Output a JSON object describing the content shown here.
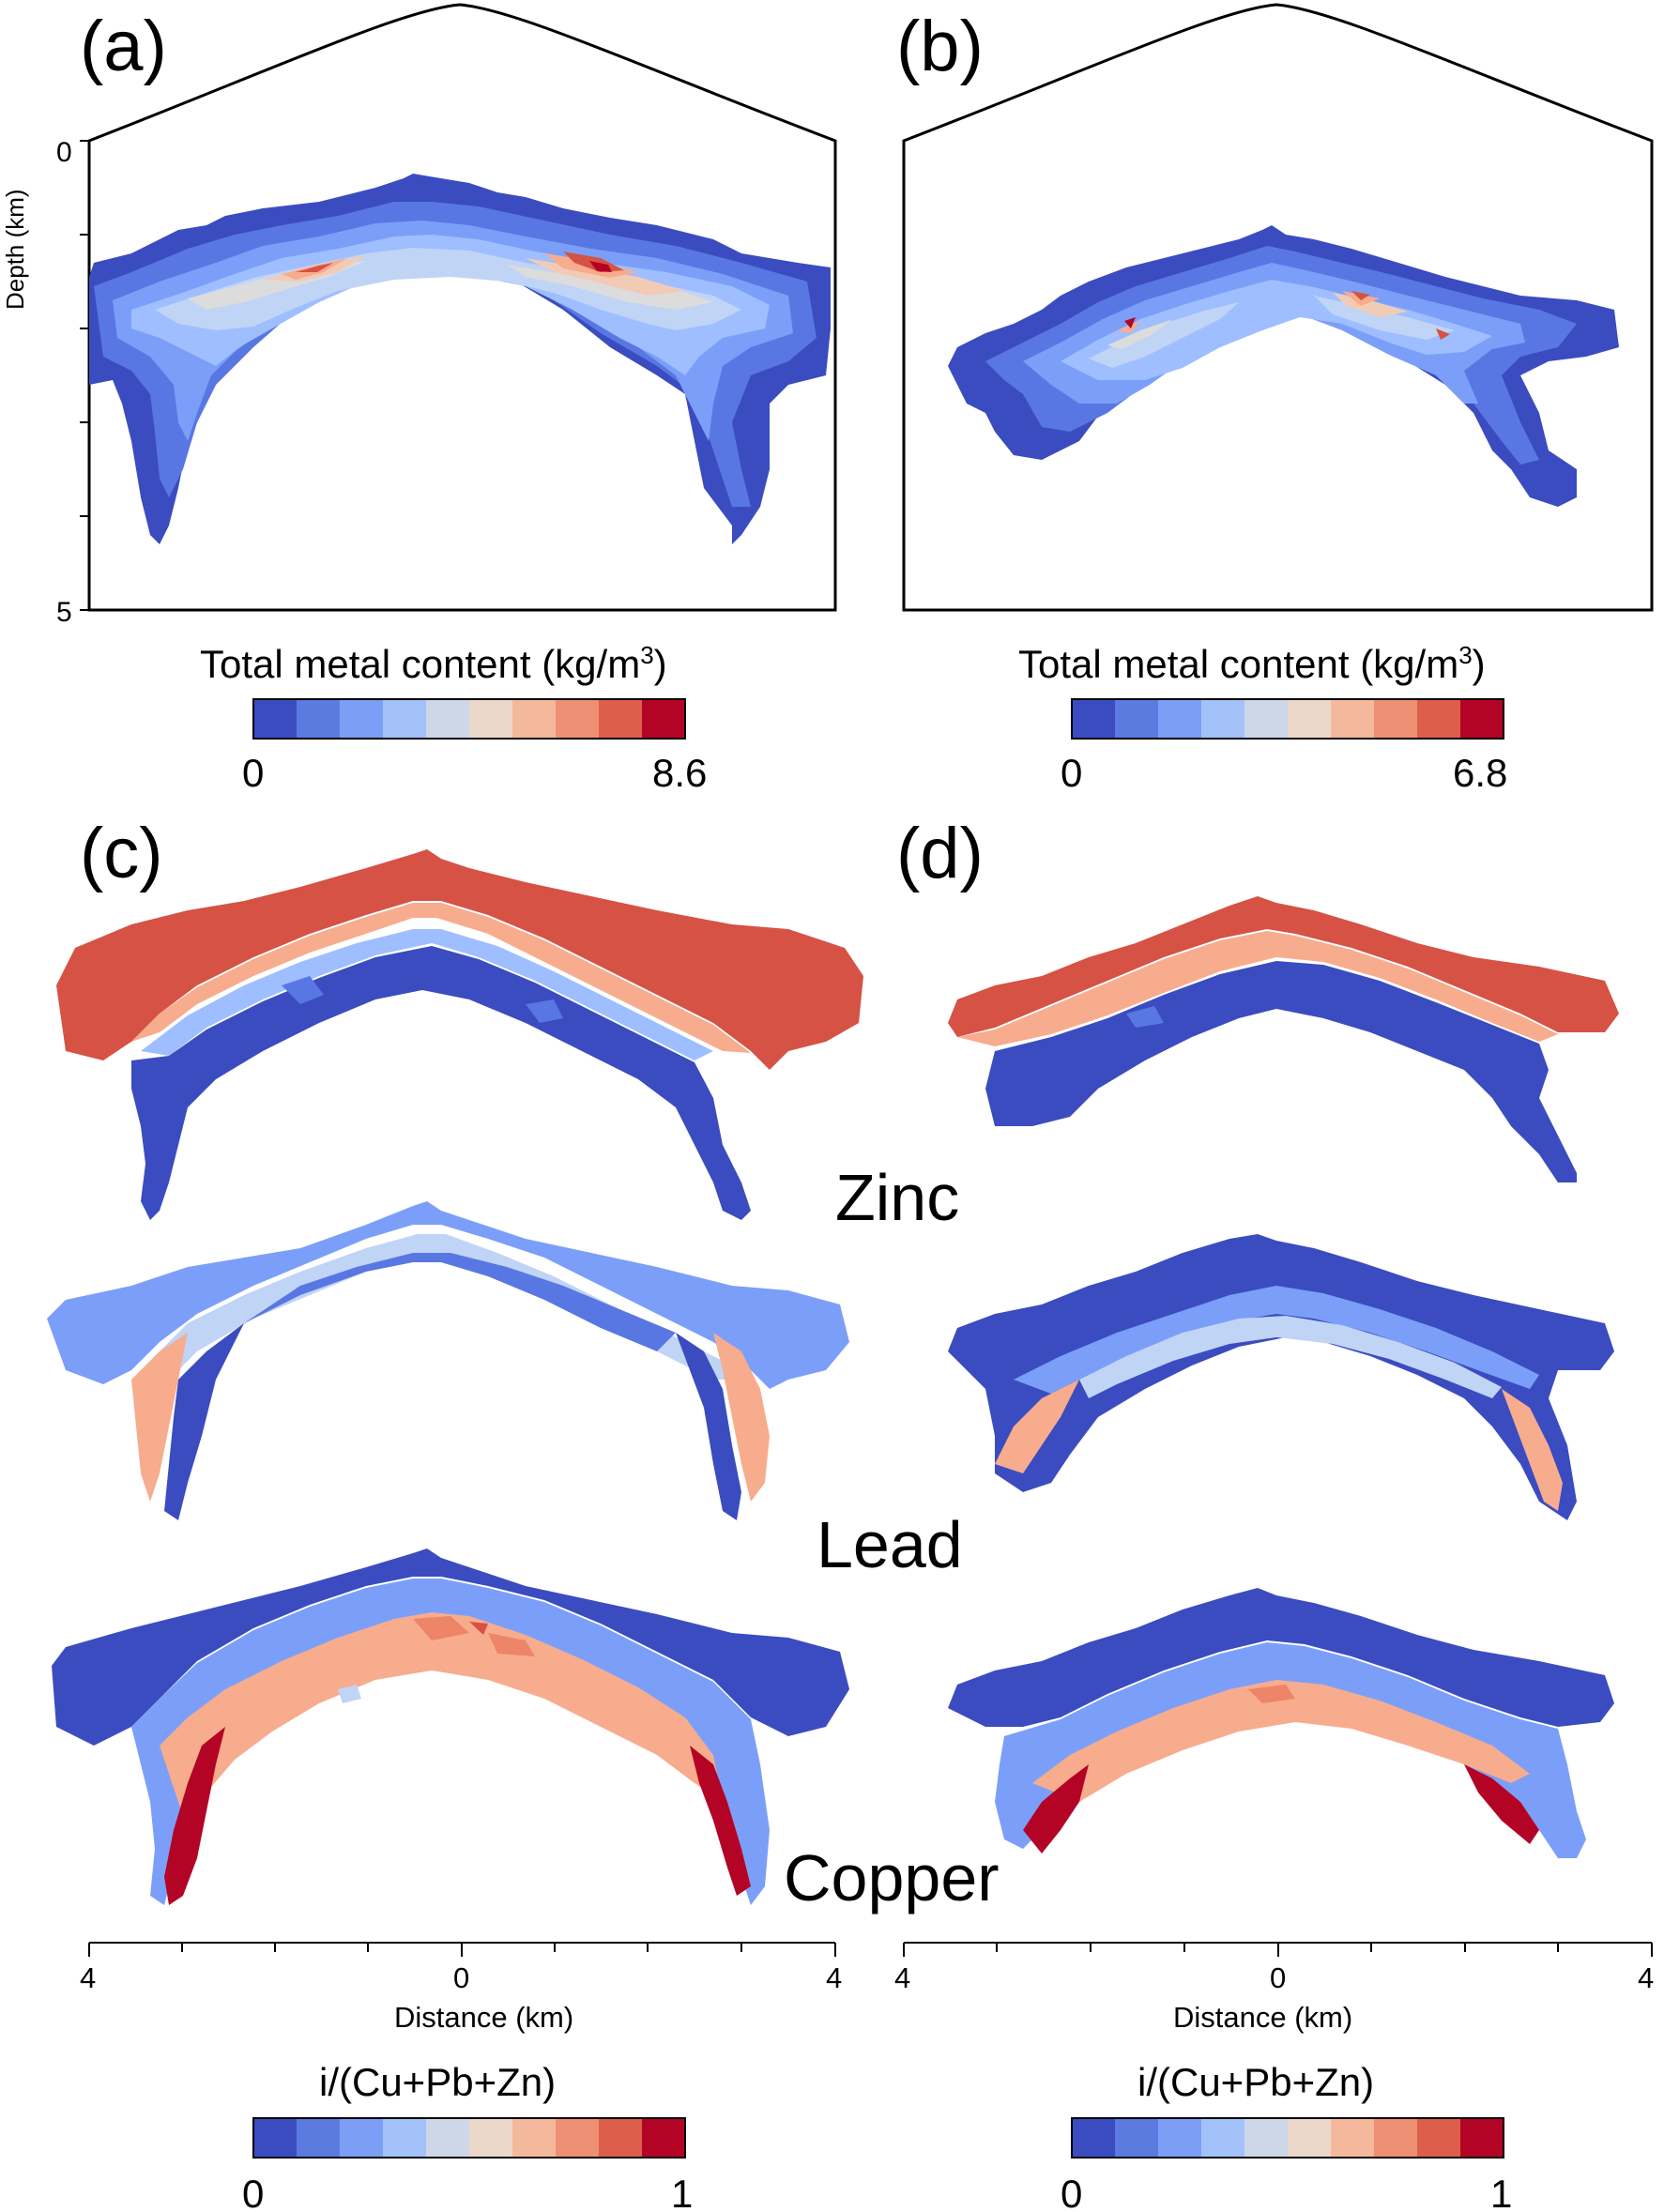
{
  "panels": [
    {
      "letter": "(a)",
      "scale_title": "Total metal content (kg/m",
      "scale_unit_sup": "3",
      "scale_title_end": ")",
      "scale_min": "0",
      "scale_max": "8.6"
    },
    {
      "letter": "(b)",
      "scale_title": "Total metal content (kg/m",
      "scale_unit_sup": "3",
      "scale_title_end": ")",
      "scale_min": "0",
      "scale_max": "6.8"
    },
    {
      "letter": "(c)",
      "scale_title": "i/(Cu+Pb+Zn)",
      "scale_min": "0",
      "scale_max": "1",
      "x_label": "Distance (km)",
      "x_ticks": [
        "4",
        "0",
        "4"
      ]
    },
    {
      "letter": "(d)",
      "scale_title": "i/(Cu+Pb+Zn)",
      "scale_min": "0",
      "scale_max": "1",
      "x_label": "Distance (km)",
      "x_ticks": [
        "4",
        "0",
        "4"
      ]
    }
  ],
  "depth_axis": {
    "label": "Depth (km)",
    "ticks": [
      "0",
      "5"
    ],
    "range_km": [
      0,
      5
    ]
  },
  "metals": [
    "Zinc",
    "Lead",
    "Copper"
  ],
  "colormap": [
    "#3b4cc0",
    "#5977e3",
    "#7b9ff9",
    "#9ebeff",
    "#c0d4f5",
    "#dddcdc",
    "#f2cbb7",
    "#f7ac8e",
    "#ee8468",
    "#d65244",
    "#b40426"
  ],
  "scale_colors": [
    "#3b4cc0",
    "#5b7be1",
    "#7d9ef5",
    "#a3c2fa",
    "#cdd7e8",
    "#ecd7cb",
    "#f4b89c",
    "#ee9074",
    "#dd5f4b",
    "#b40426"
  ],
  "chart_data": [
    {
      "type": "heatmap",
      "panel": "(a)",
      "colorbar_label": "Total metal content (kg/m3)",
      "value_range": [
        0,
        8.6
      ],
      "ylabel": "Depth (km)",
      "ylim": [
        0,
        5
      ]
    },
    {
      "type": "heatmap",
      "panel": "(b)",
      "colorbar_label": "Total metal content (kg/m3)",
      "value_range": [
        0,
        6.8
      ]
    },
    {
      "type": "heatmap",
      "panel": "(c)",
      "rows": [
        "Zinc",
        "Lead",
        "Copper"
      ],
      "colorbar_label": "i/(Cu+Pb+Zn)",
      "value_range": [
        0,
        1
      ],
      "xlabel": "Distance (km)",
      "xlim": [
        -4,
        4
      ]
    },
    {
      "type": "heatmap",
      "panel": "(d)",
      "rows": [
        "Zinc",
        "Lead",
        "Copper"
      ],
      "colorbar_label": "i/(Cu+Pb+Zn)",
      "value_range": [
        0,
        1
      ],
      "xlabel": "Distance (km)",
      "xlim": [
        -4,
        4
      ]
    }
  ]
}
